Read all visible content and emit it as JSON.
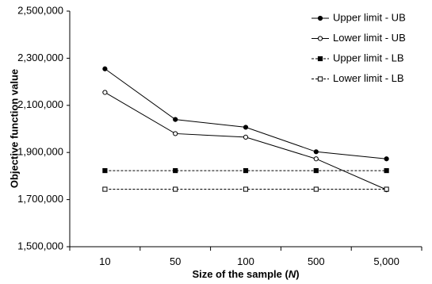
{
  "chart_data": {
    "type": "line",
    "categories": [
      "10",
      "50",
      "100",
      "500",
      "5,000"
    ],
    "series": [
      {
        "name": "Upper limit - UB",
        "values": [
          2255000,
          2040000,
          2007000,
          1903000,
          1873000
        ],
        "line_style": "solid",
        "marker": "filled-circle"
      },
      {
        "name": "Lower limit - UB",
        "values": [
          2155000,
          1980000,
          1965000,
          1873000,
          1742000
        ],
        "line_style": "solid",
        "marker": "open-circle"
      },
      {
        "name": "Upper limit - LB",
        "values": [
          1823000,
          1823000,
          1823000,
          1823000,
          1823000
        ],
        "line_style": "dashed",
        "marker": "filled-square"
      },
      {
        "name": "Lower limit - LB",
        "values": [
          1744000,
          1744000,
          1744000,
          1744000,
          1744000
        ],
        "line_style": "dashed",
        "marker": "open-square"
      }
    ],
    "ylabel": "Objective function value",
    "xlabel_prefix": "Size of the sample (",
    "xlabel_var": "N",
    "xlabel_suffix": ")",
    "ylim": [
      1500000,
      2500000
    ],
    "yticks": [
      1500000,
      1700000,
      1900000,
      2100000,
      2300000,
      2500000
    ],
    "ytick_labels": [
      "1,500,000",
      "1,700,000",
      "1,900,000",
      "2,100,000",
      "2,300,000",
      "2,500,000"
    ],
    "grid": false,
    "legend_position": "top-right",
    "line_color": "#000000"
  }
}
